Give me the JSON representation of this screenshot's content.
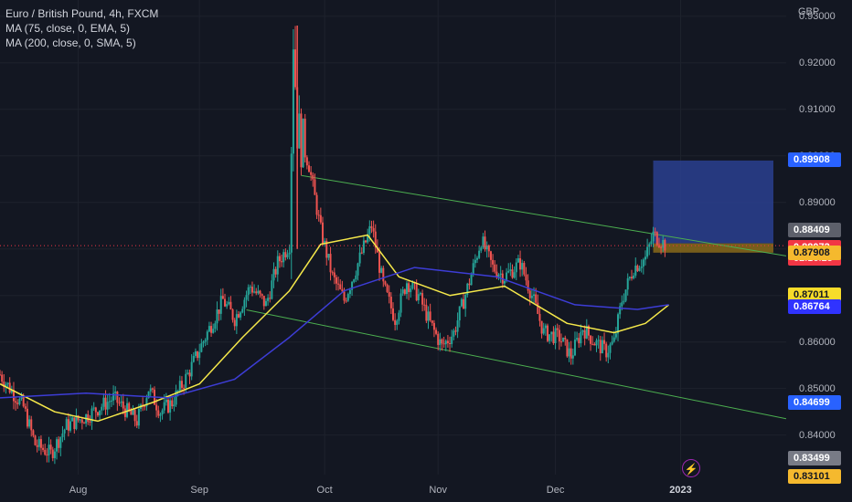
{
  "legend": {
    "title": "Euro / British Pound, 4h, FXCM",
    "ma1": "MA (75, close, 0, EMA, 5)",
    "ma2": "MA (200, close, 0, SMA, 5)"
  },
  "currency": "GBP",
  "price_ticks": [
    "0.93000",
    "0.92000",
    "0.91000",
    "0.90000",
    "0.89000",
    "0.88000",
    "0.87000",
    "0.86000",
    "0.85000",
    "0.84000"
  ],
  "price_tags": [
    {
      "value": "0.89908",
      "bg": "#2962ff",
      "fg": "#ffffff"
    },
    {
      "value": "0.88409",
      "bg": "#5d606b",
      "fg": "#ffffff"
    },
    {
      "value": "0.88072",
      "bg": "#f23645",
      "fg": "#ffffff",
      "sub": "02:16:25"
    },
    {
      "value": "0.87908",
      "bg": "#f5b92e",
      "fg": "#131722"
    },
    {
      "value": "0.87011",
      "bg": "#f7dc2a",
      "fg": "#131722"
    },
    {
      "value": "0.86764",
      "bg": "#3033ff",
      "fg": "#ffffff"
    },
    {
      "value": "0.84699",
      "bg": "#2962ff",
      "fg": "#ffffff"
    },
    {
      "value": "0.83499",
      "bg": "#787b86",
      "fg": "#ffffff"
    },
    {
      "value": "0.83101",
      "bg": "#f5b92e",
      "fg": "#131722"
    }
  ],
  "time_labels": [
    "Aug",
    "Sep",
    "Oct",
    "Nov",
    "Dec",
    "2023"
  ],
  "colors": {
    "up": "#26a69a",
    "down": "#ef5350",
    "ema": "#f5e84a",
    "sma": "#3d3dd6",
    "channel": "#4caf50",
    "target": "#2a3f8f",
    "stop": "#8a6a1a"
  },
  "chart_data": {
    "type": "candlestick",
    "symbol": "Euro / British Pound",
    "interval": "4h",
    "ylim": [
      0.8315,
      0.9335
    ],
    "x_range": [
      "2022-07-12",
      "2023-01-29"
    ],
    "x_ticks": [
      {
        "label": "Aug",
        "date": "2022-08-01"
      },
      {
        "label": "Sep",
        "date": "2022-09-01"
      },
      {
        "label": "Oct",
        "date": "2022-10-03"
      },
      {
        "label": "Nov",
        "date": "2022-11-01"
      },
      {
        "label": "Dec",
        "date": "2022-12-01"
      },
      {
        "label": "2023",
        "date": "2023-01-02"
      }
    ],
    "price_path": [
      [
        "2022-07-12",
        0.853
      ],
      [
        "2022-07-18",
        0.846
      ],
      [
        "2022-07-21",
        0.838
      ],
      [
        "2022-07-25",
        0.836
      ],
      [
        "2022-07-29",
        0.842
      ],
      [
        "2022-08-03",
        0.844
      ],
      [
        "2022-08-10",
        0.848
      ],
      [
        "2022-08-16",
        0.843
      ],
      [
        "2022-08-19",
        0.85
      ],
      [
        "2022-08-22",
        0.845
      ],
      [
        "2022-08-25",
        0.847
      ],
      [
        "2022-08-29",
        0.853
      ],
      [
        "2022-09-03",
        0.862
      ],
      [
        "2022-09-07",
        0.869
      ],
      [
        "2022-09-10",
        0.865
      ],
      [
        "2022-09-14",
        0.872
      ],
      [
        "2022-09-18",
        0.868
      ],
      [
        "2022-09-21",
        0.877
      ],
      [
        "2022-09-24",
        0.881
      ],
      [
        "2022-09-25",
        0.926
      ],
      [
        "2022-09-26",
        0.906
      ],
      [
        "2022-09-29",
        0.898
      ],
      [
        "2022-10-02",
        0.884
      ],
      [
        "2022-10-05",
        0.874
      ],
      [
        "2022-10-08",
        0.869
      ],
      [
        "2022-10-12",
        0.878
      ],
      [
        "2022-10-15",
        0.885
      ],
      [
        "2022-10-18",
        0.872
      ],
      [
        "2022-10-21",
        0.865
      ],
      [
        "2022-10-24",
        0.873
      ],
      [
        "2022-10-27",
        0.87
      ],
      [
        "2022-10-30",
        0.864
      ],
      [
        "2022-11-02",
        0.859
      ],
      [
        "2022-11-05",
        0.862
      ],
      [
        "2022-11-09",
        0.873
      ],
      [
        "2022-11-12",
        0.882
      ],
      [
        "2022-11-15",
        0.876
      ],
      [
        "2022-11-18",
        0.874
      ],
      [
        "2022-11-22",
        0.877
      ],
      [
        "2022-11-25",
        0.87
      ],
      [
        "2022-11-28",
        0.862
      ],
      [
        "2022-12-02",
        0.861
      ],
      [
        "2022-12-05",
        0.857
      ],
      [
        "2022-12-08",
        0.863
      ],
      [
        "2022-12-11",
        0.86
      ],
      [
        "2022-12-14",
        0.858
      ],
      [
        "2022-12-16",
        0.86
      ],
      [
        "2022-12-18",
        0.869
      ],
      [
        "2022-12-21",
        0.876
      ],
      [
        "2022-12-24",
        0.878
      ],
      [
        "2022-12-26",
        0.883
      ],
      [
        "2022-12-29",
        0.881
      ]
    ],
    "ema_75": [
      [
        "2022-07-12",
        0.851
      ],
      [
        "2022-07-26",
        0.845
      ],
      [
        "2022-08-06",
        0.843
      ],
      [
        "2022-08-20",
        0.847
      ],
      [
        "2022-09-01",
        0.851
      ],
      [
        "2022-09-12",
        0.861
      ],
      [
        "2022-09-24",
        0.871
      ],
      [
        "2022-10-02",
        0.881
      ],
      [
        "2022-10-14",
        0.883
      ],
      [
        "2022-10-22",
        0.874
      ],
      [
        "2022-11-04",
        0.87
      ],
      [
        "2022-11-18",
        0.872
      ],
      [
        "2022-12-04",
        0.864
      ],
      [
        "2022-12-16",
        0.862
      ],
      [
        "2022-12-24",
        0.864
      ],
      [
        "2022-12-30",
        0.868
      ]
    ],
    "sma_200": [
      [
        "2022-07-12",
        0.848
      ],
      [
        "2022-08-03",
        0.849
      ],
      [
        "2022-08-24",
        0.848
      ],
      [
        "2022-09-10",
        0.852
      ],
      [
        "2022-09-24",
        0.861
      ],
      [
        "2022-10-08",
        0.871
      ],
      [
        "2022-10-26",
        0.876
      ],
      [
        "2022-11-16",
        0.874
      ],
      [
        "2022-12-06",
        0.868
      ],
      [
        "2022-12-22",
        0.867
      ],
      [
        "2022-12-30",
        0.868
      ]
    ],
    "channel_upper": [
      [
        "2022-09-27",
        0.8958
      ],
      [
        "2023-01-29",
        0.8785
      ]
    ],
    "channel_lower": [
      [
        "2022-09-13",
        0.8669
      ],
      [
        "2023-01-29",
        0.8435
      ]
    ],
    "position": {
      "type": "long",
      "entry": 0.8812,
      "target": 0.899,
      "stop": 0.8792
    }
  }
}
